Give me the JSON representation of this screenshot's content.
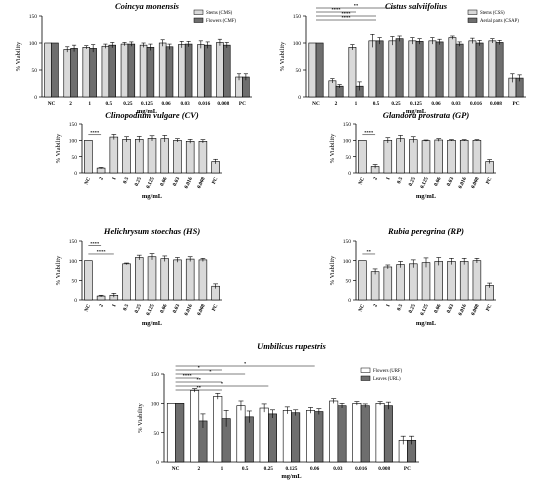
{
  "chart_data": [
    {
      "type": "bar",
      "title": "Coincya monensis",
      "ylabel": "% Viability",
      "xlabel": "mg/mL",
      "ylim": [
        0,
        150
      ],
      "yticks": [
        0,
        50,
        100,
        150
      ],
      "categories": [
        "NC",
        "2",
        "1",
        "0.5",
        "0.25",
        "0.125",
        "0.06",
        "0.03",
        "0.016",
        "0.008",
        "PC"
      ],
      "rotated_ticks": false,
      "legend_position": "top-right",
      "series": [
        {
          "name": "Stems (CMS)",
          "color": "#d9d9d9",
          "values": [
            100,
            88,
            92,
            94,
            98,
            96,
            100,
            97,
            97,
            101,
            37
          ],
          "errors": [
            0,
            5,
            3,
            4,
            3,
            4,
            6,
            6,
            7,
            6,
            6
          ]
        },
        {
          "name": "Flowers (CMF)",
          "color": "#6e6e6e",
          "values": [
            100,
            90,
            90,
            96,
            98,
            92,
            93,
            98,
            96,
            96,
            37
          ],
          "errors": [
            0,
            6,
            7,
            5,
            4,
            6,
            5,
            5,
            6,
            5,
            6
          ]
        }
      ],
      "significance": []
    },
    {
      "type": "bar",
      "title": "Cistus salviifolius",
      "ylabel": "% Viability",
      "xlabel": "mg/mL",
      "ylim": [
        0,
        150
      ],
      "yticks": [
        0,
        50,
        100,
        150
      ],
      "categories": [
        "NC",
        "2",
        "1",
        "0.5",
        "0.25",
        "0.125",
        "0.06",
        "0.03",
        "0.016",
        "0.008",
        "PC"
      ],
      "rotated_ticks": false,
      "legend_position": "top-right",
      "series": [
        {
          "name": "Stems (CSS)",
          "color": "#d9d9d9",
          "values": [
            100,
            30,
            92,
            104,
            104,
            104,
            104,
            110,
            104,
            104,
            35
          ],
          "errors": [
            0,
            4,
            5,
            12,
            8,
            6,
            6,
            3,
            5,
            4,
            8
          ]
        },
        {
          "name": "Aerial parts (CSAP)",
          "color": "#6e6e6e",
          "values": [
            100,
            20,
            20,
            104,
            108,
            103,
            102,
            98,
            100,
            101,
            35
          ],
          "errors": [
            0,
            3,
            8,
            6,
            5,
            5,
            5,
            4,
            5,
            4,
            6
          ]
        }
      ],
      "significance": [
        {
          "from": 0,
          "to": 4,
          "label": "**"
        },
        {
          "from": 0,
          "to": 2,
          "label": "****"
        },
        {
          "from": 0,
          "to": 3,
          "label": "****"
        },
        {
          "from": 0,
          "to": 3,
          "label": "****"
        }
      ]
    },
    {
      "type": "bar",
      "title": "Clinopodium vulgare (CV)",
      "ylabel": "% Viability",
      "xlabel": "mg/mL",
      "ylim": [
        0,
        150
      ],
      "yticks": [
        0,
        50,
        100,
        150
      ],
      "categories": [
        "NC",
        "2",
        "1",
        "0.5",
        "0.25",
        "0.125",
        "0.06",
        "0.03",
        "0.016",
        "0.008",
        "PC"
      ],
      "rotated_ticks": true,
      "series": [
        {
          "name": "",
          "color": "#d9d9d9",
          "values": [
            100,
            15,
            110,
            103,
            103,
            106,
            105,
            100,
            97,
            97,
            35
          ],
          "errors": [
            0,
            2,
            8,
            8,
            9,
            8,
            10,
            5,
            6,
            5,
            7
          ]
        }
      ],
      "significance": [
        {
          "from": 0,
          "to": 1,
          "label": "****"
        }
      ]
    },
    {
      "type": "bar",
      "title": "Glandora prostrata (GP)",
      "ylabel": "% Viability",
      "xlabel": "mg/mL",
      "ylim": [
        0,
        150
      ],
      "yticks": [
        0,
        50,
        100,
        150
      ],
      "categories": [
        "NC",
        "2",
        "1",
        "0.5",
        "0.25",
        "0.125",
        "0.06",
        "0.03",
        "0.016",
        "0.008",
        "PC"
      ],
      "rotated_ticks": true,
      "series": [
        {
          "name": "",
          "color": "#d9d9d9",
          "values": [
            100,
            20,
            100,
            105,
            102,
            99,
            101,
            100,
            100,
            100,
            35
          ],
          "errors": [
            0,
            6,
            8,
            10,
            9,
            2,
            4,
            2,
            2,
            2,
            6
          ]
        }
      ],
      "significance": [
        {
          "from": 0,
          "to": 1,
          "label": "****"
        }
      ]
    },
    {
      "type": "bar",
      "title": "Helichrysum stoechas (HS)",
      "ylabel": "% Viability",
      "xlabel": "mg/mL",
      "ylim": [
        0,
        150
      ],
      "yticks": [
        0,
        50,
        100,
        150
      ],
      "categories": [
        "NC",
        "2",
        "1",
        "0.5",
        "0.25",
        "0.125",
        "0.06",
        "0.03",
        "0.016",
        "0.008",
        "PC"
      ],
      "rotated_ticks": true,
      "series": [
        {
          "name": "",
          "color": "#d9d9d9",
          "values": [
            100,
            10,
            12,
            92,
            108,
            110,
            105,
            102,
            104,
            102,
            35
          ],
          "errors": [
            0,
            2,
            5,
            2,
            6,
            8,
            7,
            6,
            6,
            4,
            6
          ]
        }
      ],
      "significance": [
        {
          "from": 0,
          "to": 1,
          "label": "****"
        },
        {
          "from": 0,
          "to": 2,
          "label": "****"
        }
      ]
    },
    {
      "type": "bar",
      "title": "Rubia peregrina (RP)",
      "ylabel": "% Viability",
      "xlabel": "mg/mL",
      "ylim": [
        0,
        150
      ],
      "yticks": [
        0,
        50,
        100,
        150
      ],
      "categories": [
        "NC",
        "2",
        "1",
        "0.5",
        "0.25",
        "0.125",
        "0.06",
        "0.03",
        "0.016",
        "0.008",
        "PC"
      ],
      "rotated_ticks": true,
      "series": [
        {
          "name": "",
          "color": "#d9d9d9",
          "values": [
            100,
            72,
            84,
            90,
            92,
            95,
            98,
            98,
            98,
            100,
            37
          ],
          "errors": [
            0,
            7,
            5,
            8,
            10,
            12,
            10,
            8,
            8,
            6,
            6
          ]
        }
      ],
      "significance": [
        {
          "from": 0,
          "to": 1,
          "label": "**"
        }
      ]
    },
    {
      "type": "bar",
      "title": "Umbilicus rupestris",
      "ylabel": "% Viability",
      "xlabel": "mg/mL",
      "ylim": [
        0,
        150
      ],
      "yticks": [
        0,
        50,
        100,
        150
      ],
      "categories": [
        "NC",
        "2",
        "1",
        "0.5",
        "0.25",
        "0.125",
        "0.06",
        "0.03",
        "0.016",
        "0.008",
        "PC"
      ],
      "rotated_ticks": false,
      "legend_position": "top-right",
      "series": [
        {
          "name": "Flowers (URF)",
          "color": "#ffffff",
          "values": [
            100,
            122,
            112,
            96,
            92,
            88,
            88,
            104,
            100,
            100,
            37
          ],
          "errors": [
            0,
            3,
            5,
            8,
            7,
            6,
            5,
            4,
            3,
            3,
            7
          ]
        },
        {
          "name": "Leaves (URL)",
          "color": "#6e6e6e",
          "values": [
            100,
            70,
            74,
            77,
            82,
            84,
            86,
            96,
            96,
            96,
            37
          ],
          "errors": [
            0,
            12,
            14,
            10,
            7,
            5,
            5,
            4,
            3,
            6,
            7
          ]
        }
      ],
      "significance": [
        {
          "from": 0,
          "to": 6,
          "label": "*"
        },
        {
          "from": 0,
          "to": 2,
          "label": "*"
        },
        {
          "from": 0,
          "to": 3,
          "label": "*"
        },
        {
          "from": 0,
          "to": 1,
          "label": "****"
        },
        {
          "from": 0,
          "to": 2,
          "label": "**"
        },
        {
          "from": 0,
          "to": 4,
          "label": "*"
        },
        {
          "from": 0,
          "to": 2,
          "label": "**"
        }
      ]
    }
  ]
}
